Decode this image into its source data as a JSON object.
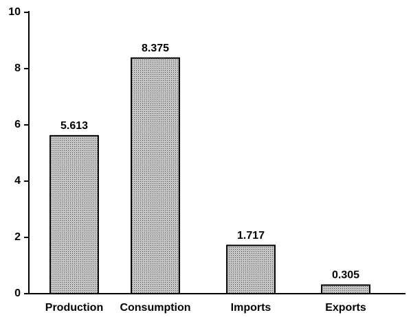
{
  "chart_data": {
    "type": "bar",
    "categories": [
      "Production",
      "Consumption",
      "Imports",
      "Exports"
    ],
    "values": [
      5.613,
      8.375,
      1.717,
      0.305
    ],
    "color": "#c4c4c4",
    "ylim": [
      0,
      10
    ],
    "yticks": [
      0,
      2,
      4,
      6,
      8,
      10
    ],
    "grid": false
  }
}
